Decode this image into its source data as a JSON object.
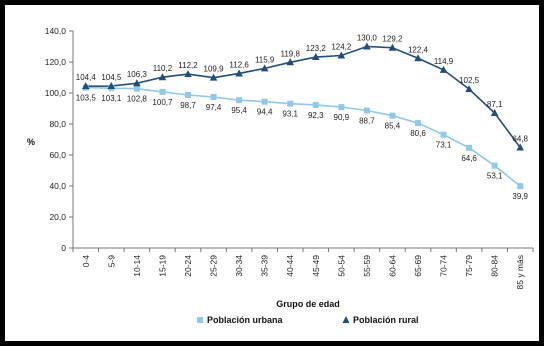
{
  "chart_data": {
    "type": "line",
    "title": "",
    "xlabel": "Grupo de edad",
    "ylabel": "%",
    "ylim": [
      0,
      140
    ],
    "yticks": [
      "0",
      "20,0",
      "40,0",
      "60,0",
      "80,0",
      "100,0",
      "120,0",
      "140,0"
    ],
    "ytick_values": [
      0,
      20,
      40,
      60,
      80,
      100,
      120,
      140
    ],
    "grid": false,
    "legend_position": "bottom",
    "categories": [
      "0-4",
      "5-9",
      "10-14",
      "15-19",
      "20-24",
      "25-29",
      "30-34",
      "35-39",
      "40-44",
      "45-49",
      "50-54",
      "55-59",
      "60-64",
      "65-69",
      "70-74",
      "75-79",
      "80-84",
      "85 y más"
    ],
    "series": [
      {
        "name": "Población urbana",
        "marker": "square",
        "color": "#8fc8e8",
        "values": [
          103.5,
          103.1,
          102.8,
          100.7,
          98.7,
          97.4,
          95.4,
          94.4,
          93.1,
          92.3,
          90.9,
          88.7,
          85.4,
          80.6,
          73.1,
          64.6,
          53.1,
          39.9
        ],
        "labels": [
          "103,5",
          "103,1",
          "102,8",
          "100,7",
          "98,7",
          "97,4",
          "95,4",
          "94,4",
          "93,1",
          "92,3",
          "90,9",
          "88,7",
          "85,4",
          "80,6",
          "73,1",
          "64,6",
          "53,1",
          "39,9"
        ]
      },
      {
        "name": "Población rural",
        "marker": "triangle",
        "color": "#1f4e79",
        "values": [
          104.4,
          104.5,
          106.3,
          110.2,
          112.2,
          109.9,
          112.6,
          115.9,
          119.8,
          123.2,
          124.2,
          130.0,
          129.2,
          122.4,
          114.9,
          102.5,
          87.1,
          64.8
        ],
        "labels": [
          "104,4",
          "104,5",
          "106,3",
          "110,2",
          "112,2",
          "109,9",
          "112,6",
          "115,9",
          "119,8",
          "123,2",
          "124,2",
          "130,0",
          "129,2",
          "122,4",
          "114,9",
          "102,5",
          "87,1",
          "64,8"
        ]
      }
    ]
  }
}
